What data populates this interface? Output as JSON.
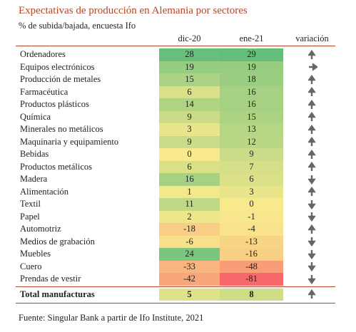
{
  "header": {
    "title": "Expectativas de producción en Alemania por sectores",
    "subtitle": "% de subida/bajada, encuesta Ifo"
  },
  "table": {
    "columns": [
      "dic-20",
      "ene-21",
      "variación"
    ],
    "rows": [
      [
        "Ordenadores",
        28,
        29
      ],
      [
        "Equipos electrónicos",
        19,
        19
      ],
      [
        "Producción de metales",
        15,
        18
      ],
      [
        "Farmacéutica",
        6,
        16
      ],
      [
        "Productos plásticos",
        14,
        16
      ],
      [
        "Química",
        9,
        15
      ],
      [
        "Minerales no metálicos",
        3,
        13
      ],
      [
        "Maquinaria y equipamiento",
        9,
        12
      ],
      [
        "Bebidas",
        0,
        9
      ],
      [
        "Productos metálicos",
        6,
        7
      ],
      [
        "Madera",
        16,
        6
      ],
      [
        "Alimentación",
        1,
        3
      ],
      [
        "Textil",
        11,
        0
      ],
      [
        "Papel",
        2,
        -1
      ],
      [
        "Automotriz",
        -18,
        -4
      ],
      [
        "Medios de grabación",
        -6,
        -13
      ],
      [
        "Muebles",
        24,
        -16
      ],
      [
        "Cuero",
        -33,
        -48
      ],
      [
        "Prendas de vestir",
        -42,
        -81
      ]
    ],
    "total": [
      "Total manufacturas",
      5,
      8
    ]
  },
  "footer": "Fuente: Singular Bank a partir de Ifo Institute, 2021"
}
